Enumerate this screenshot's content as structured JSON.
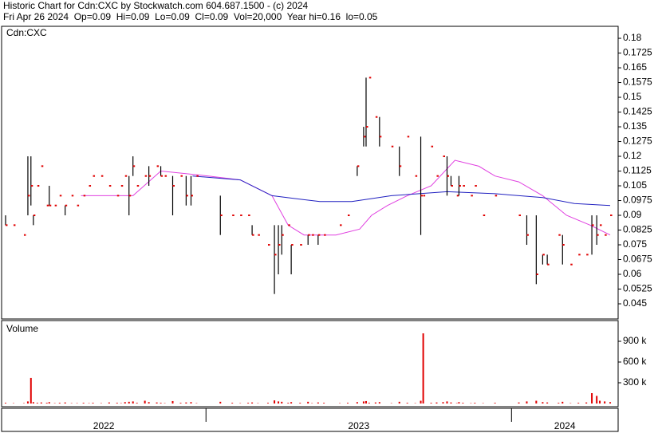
{
  "header": {
    "title": "Historic Chart for Cdn:CXC by Stockwatch.com 604.687.1500 - (c) 2024",
    "quote": "Fri Apr 26 2024  Op=0.09  Hi=0.09  Lo=0.09  Cl=0.09  Vol=20,000  Year hi=0.16  lo=0.05"
  },
  "chart_data": [
    {
      "type": "ohlc",
      "label": "Cdn:CXC",
      "color": "#000000",
      "close_color": "#e00000",
      "xlim": [
        2022.331,
        2024.349
      ],
      "ylim": [
        0.0373,
        0.1861
      ],
      "yticks": [
        0.18,
        0.1725,
        0.165,
        0.1575,
        0.15,
        0.1425,
        0.135,
        0.1275,
        0.12,
        0.1125,
        0.105,
        0.0975,
        0.09,
        0.0825,
        0.075,
        0.0675,
        0.06,
        0.0525,
        0.045
      ],
      "x": [
        2022.344,
        2022.37,
        2022.404,
        2022.417,
        2022.427,
        2022.435,
        2022.448,
        2022.461,
        2022.479,
        2022.487,
        2022.505,
        2022.521,
        2022.539,
        2022.56,
        2022.578,
        2022.599,
        2022.617,
        2022.63,
        2022.657,
        2022.683,
        2022.709,
        2022.722,
        2022.735,
        2022.748,
        2022.761,
        2022.774,
        2022.8,
        2022.813,
        2022.839,
        2022.852,
        2022.865,
        2022.891,
        2022.917,
        2022.935,
        2022.951,
        2022.969,
        2023.047,
        2023.086,
        2023.112,
        2023.138,
        2023.151,
        2023.17,
        2023.203,
        2023.224,
        2023.237,
        2023.248,
        2023.269,
        2023.279,
        2023.308,
        2023.334,
        2023.347,
        2023.367,
        2023.386,
        2023.438,
        2023.464,
        2023.495,
        2023.516,
        2023.524,
        2023.534,
        2023.555,
        2023.568,
        2023.607,
        2023.633,
        2023.659,
        2023.685,
        2023.703,
        2023.711,
        2023.737,
        2023.755,
        2023.776,
        2023.789,
        2023.802,
        2023.821,
        2023.828,
        2023.841,
        2023.867,
        2023.88,
        2023.907,
        2023.946,
        2024.024,
        2024.05,
        2024.081,
        2024.102,
        2024.117,
        2024.154,
        2024.167,
        2024.193,
        2024.219,
        2024.245,
        2024.263,
        2024.279,
        2024.289,
        2024.305,
        2024.323
      ],
      "high": [
        0.09,
        0.085,
        0.08,
        0.12,
        0.12,
        0.09,
        0.105,
        0.115,
        0.095,
        0.105,
        0.095,
        0.1,
        0.095,
        0.1,
        0.095,
        0.1,
        0.105,
        0.11,
        0.11,
        0.105,
        0.1,
        0.105,
        0.11,
        0.11,
        0.12,
        0.105,
        0.11,
        0.115,
        0.115,
        0.115,
        0.11,
        0.11,
        0.11,
        0.11,
        0.11,
        0.11,
        0.1,
        0.09,
        0.09,
        0.09,
        0.085,
        0.08,
        0.075,
        0.085,
        0.085,
        0.085,
        0.085,
        0.075,
        0.075,
        0.08,
        0.08,
        0.08,
        0.08,
        0.085,
        0.09,
        0.115,
        0.135,
        0.16,
        0.16,
        0.14,
        0.14,
        0.125,
        0.125,
        0.13,
        0.11,
        0.13,
        0.1,
        0.125,
        0.11,
        0.12,
        0.12,
        0.11,
        0.1,
        0.11,
        0.105,
        0.1,
        0.105,
        0.09,
        0.1,
        0.09,
        0.09,
        0.09,
        0.07,
        0.07,
        0.08,
        0.08,
        0.065,
        0.07,
        0.07,
        0.09,
        0.09,
        0.085,
        0.08,
        0.09
      ],
      "low": [
        0.085,
        0.085,
        0.08,
        0.09,
        0.095,
        0.085,
        0.105,
        0.115,
        0.095,
        0.095,
        0.095,
        0.1,
        0.09,
        0.1,
        0.095,
        0.1,
        0.105,
        0.11,
        0.11,
        0.105,
        0.1,
        0.105,
        0.11,
        0.09,
        0.11,
        0.105,
        0.11,
        0.105,
        0.115,
        0.11,
        0.11,
        0.09,
        0.11,
        0.095,
        0.095,
        0.11,
        0.08,
        0.09,
        0.09,
        0.09,
        0.08,
        0.08,
        0.075,
        0.05,
        0.06,
        0.07,
        0.085,
        0.06,
        0.075,
        0.075,
        0.08,
        0.075,
        0.08,
        0.085,
        0.09,
        0.11,
        0.125,
        0.125,
        0.16,
        0.14,
        0.125,
        0.125,
        0.11,
        0.13,
        0.11,
        0.08,
        0.1,
        0.125,
        0.11,
        0.12,
        0.1,
        0.105,
        0.1,
        0.1,
        0.105,
        0.1,
        0.105,
        0.09,
        0.1,
        0.09,
        0.075,
        0.055,
        0.065,
        0.065,
        0.08,
        0.065,
        0.065,
        0.07,
        0.07,
        0.07,
        0.075,
        0.085,
        0.08,
        0.09
      ],
      "close": [
        0.085,
        0.085,
        0.08,
        0.1,
        0.105,
        0.09,
        0.105,
        0.115,
        0.095,
        0.095,
        0.095,
        0.1,
        0.095,
        0.1,
        0.095,
        0.1,
        0.105,
        0.11,
        0.11,
        0.105,
        0.1,
        0.105,
        0.11,
        0.1,
        0.115,
        0.105,
        0.11,
        0.11,
        0.115,
        0.11,
        0.11,
        0.105,
        0.11,
        0.1,
        0.1,
        0.11,
        0.09,
        0.09,
        0.09,
        0.09,
        0.08,
        0.08,
        0.075,
        0.07,
        0.075,
        0.08,
        0.085,
        0.075,
        0.075,
        0.08,
        0.08,
        0.08,
        0.08,
        0.085,
        0.09,
        0.115,
        0.13,
        0.135,
        0.16,
        0.14,
        0.13,
        0.125,
        0.115,
        0.13,
        0.11,
        0.1,
        0.1,
        0.125,
        0.11,
        0.12,
        0.11,
        0.105,
        0.1,
        0.105,
        0.105,
        0.1,
        0.105,
        0.09,
        0.1,
        0.09,
        0.08,
        0.06,
        0.07,
        0.065,
        0.08,
        0.075,
        0.065,
        0.07,
        0.07,
        0.085,
        0.08,
        0.085,
        0.08,
        0.09
      ],
      "series": [
        {
          "type": "line",
          "color": "#e040e0",
          "x": [
            2022.591,
            2022.761,
            2022.852,
            2023.008,
            2023.112,
            2023.216,
            2023.269,
            2023.321,
            2023.425,
            2023.503,
            2023.542,
            2023.594,
            2023.659,
            2023.737,
            2023.815,
            2023.893,
            2023.946,
            2024.024,
            2024.102,
            2024.18,
            2024.258,
            2024.323
          ],
          "values": [
            0.1,
            0.1,
            0.1125,
            0.11,
            0.108,
            0.1,
            0.085,
            0.08,
            0.08,
            0.083,
            0.09,
            0.095,
            0.1,
            0.105,
            0.118,
            0.115,
            0.11,
            0.107,
            0.1,
            0.09,
            0.085,
            0.08
          ]
        },
        {
          "type": "line",
          "color": "#2020c0",
          "x": [
            2022.956,
            2023.112,
            2023.216,
            2023.373,
            2023.477,
            2023.607,
            2023.789,
            2023.946,
            2024.102,
            2024.206,
            2024.323
          ],
          "values": [
            0.11,
            0.108,
            0.1,
            0.097,
            0.097,
            0.1,
            0.102,
            0.101,
            0.099,
            0.096,
            0.095
          ]
        }
      ]
    },
    {
      "type": "bar",
      "label": "Volume",
      "color": "#e00000",
      "xlim": [
        2022.331,
        2024.349
      ],
      "ylim": [
        0,
        1200000
      ],
      "yticks": [
        {
          "value": 900000,
          "label": "900 k"
        },
        {
          "value": 600000,
          "label": "600 k"
        },
        {
          "value": 300000,
          "label": "300 k"
        }
      ],
      "x_categories": [
        "2022",
        "2023",
        "2024"
      ],
      "x_breaks": [
        2023,
        2024
      ],
      "x": [
        2022.344,
        2022.37,
        2022.404,
        2022.417,
        2022.427,
        2022.435,
        2022.448,
        2022.461,
        2022.479,
        2022.487,
        2022.505,
        2022.521,
        2022.539,
        2022.56,
        2022.578,
        2022.599,
        2022.617,
        2022.63,
        2022.657,
        2022.683,
        2022.709,
        2022.722,
        2022.735,
        2022.748,
        2022.761,
        2022.774,
        2022.8,
        2022.813,
        2022.839,
        2022.852,
        2022.865,
        2022.891,
        2022.917,
        2022.935,
        2022.951,
        2022.969,
        2023.047,
        2023.086,
        2023.112,
        2023.138,
        2023.151,
        2023.17,
        2023.203,
        2023.224,
        2023.237,
        2023.248,
        2023.269,
        2023.279,
        2023.308,
        2023.334,
        2023.347,
        2023.367,
        2023.386,
        2023.438,
        2023.464,
        2023.495,
        2023.516,
        2023.524,
        2023.534,
        2023.555,
        2023.568,
        2023.607,
        2023.633,
        2023.659,
        2023.685,
        2023.703,
        2023.711,
        2023.737,
        2023.755,
        2023.776,
        2023.789,
        2023.802,
        2023.821,
        2023.828,
        2023.841,
        2023.867,
        2023.88,
        2023.907,
        2023.946,
        2024.024,
        2024.05,
        2024.081,
        2024.102,
        2024.117,
        2024.154,
        2024.167,
        2024.193,
        2024.219,
        2024.245,
        2024.263,
        2024.279,
        2024.289,
        2024.305,
        2024.323
      ],
      "values": [
        10000,
        5000,
        5000,
        30000,
        370000,
        20000,
        10000,
        15000,
        10000,
        20000,
        5000,
        10000,
        15000,
        5000,
        5000,
        10000,
        5000,
        10000,
        5000,
        15000,
        10000,
        5000,
        20000,
        25000,
        30000,
        10000,
        40000,
        20000,
        15000,
        10000,
        5000,
        35000,
        10000,
        15000,
        20000,
        5000,
        25000,
        10000,
        5000,
        10000,
        15000,
        5000,
        10000,
        45000,
        30000,
        25000,
        10000,
        20000,
        10000,
        25000,
        5000,
        15000,
        10000,
        5000,
        10000,
        20000,
        30000,
        35000,
        10000,
        15000,
        20000,
        5000,
        25000,
        10000,
        5000,
        40000,
        1015000,
        10000,
        15000,
        20000,
        30000,
        15000,
        5000,
        20000,
        10000,
        5000,
        10000,
        5000,
        10000,
        15000,
        30000,
        40000,
        20000,
        15000,
        10000,
        25000,
        5000,
        10000,
        15000,
        150000,
        110000,
        40000,
        30000,
        20000
      ]
    }
  ]
}
